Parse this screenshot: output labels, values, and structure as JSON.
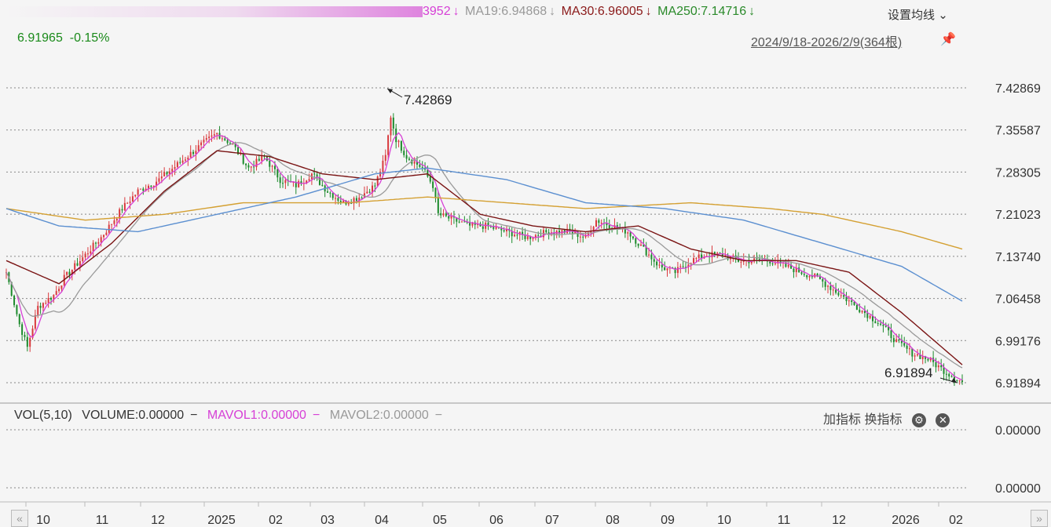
{
  "header": {
    "ma5_partial": "3952",
    "ma19": "MA19:6.94868",
    "ma30": "MA30:6.96005",
    "ma250": "MA250:7.14716",
    "arrow": "↓",
    "settings": "设置均线",
    "range": "2024/9/18-2026/2/9(364根)",
    "last_price": "6.91965",
    "change": "-0.15%"
  },
  "volume_panel": {
    "vol": "VOL(5,10)",
    "volume": "VOLUME:0.00000",
    "mavol1": "MAVOL1:0.00000",
    "mavol2": "MAVOL2:0.00000",
    "add_indicator": "加指标",
    "switch_indicator": "换指标",
    "y_ticks": [
      "0.00000",
      "0.00000"
    ]
  },
  "colors": {
    "up": "#d9383c",
    "down": "#1c8a2c",
    "ma5": "#d63fd6",
    "ma19": "#9a9a9a",
    "ma30": "#7a1414",
    "ma250": "#d4a032",
    "ma_blue": "#5b8fd0"
  },
  "chart_data": {
    "type": "candlestick",
    "ylim": [
      6.89,
      7.445
    ],
    "y_ticks": [
      "7.42869",
      "7.35587",
      "7.28305",
      "7.21023",
      "7.13740",
      "7.06458",
      "6.99176",
      "6.91894"
    ],
    "x_ticks": [
      "10",
      "11",
      "12",
      "2025",
      "02",
      "03",
      "04",
      "05",
      "06",
      "07",
      "08",
      "09",
      "10",
      "11",
      "12",
      "2026",
      "02"
    ],
    "annotations": [
      {
        "label": "7.42869",
        "x": "04",
        "y": 7.42869
      },
      {
        "label": "6.91894",
        "x": "02",
        "y": 6.91894
      }
    ],
    "close_path": [
      [
        0,
        7.11
      ],
      [
        5,
        7.02
      ],
      [
        8,
        6.98
      ],
      [
        12,
        7.05
      ],
      [
        18,
        7.07
      ],
      [
        22,
        7.1
      ],
      [
        28,
        7.13
      ],
      [
        36,
        7.17
      ],
      [
        44,
        7.22
      ],
      [
        50,
        7.25
      ],
      [
        58,
        7.27
      ],
      [
        66,
        7.3
      ],
      [
        74,
        7.33
      ],
      [
        80,
        7.35
      ],
      [
        86,
        7.33
      ],
      [
        92,
        7.29
      ],
      [
        98,
        7.31
      ],
      [
        104,
        7.27
      ],
      [
        110,
        7.26
      ],
      [
        116,
        7.28
      ],
      [
        122,
        7.25
      ],
      [
        128,
        7.23
      ],
      [
        134,
        7.24
      ],
      [
        140,
        7.26
      ],
      [
        144,
        7.31
      ],
      [
        146,
        7.38
      ],
      [
        148,
        7.34
      ],
      [
        152,
        7.31
      ],
      [
        158,
        7.29
      ],
      [
        162,
        7.26
      ],
      [
        164,
        7.21
      ],
      [
        170,
        7.2
      ],
      [
        176,
        7.19
      ],
      [
        182,
        7.19
      ],
      [
        190,
        7.18
      ],
      [
        198,
        7.17
      ],
      [
        206,
        7.18
      ],
      [
        214,
        7.18
      ],
      [
        220,
        7.17
      ],
      [
        224,
        7.2
      ],
      [
        230,
        7.19
      ],
      [
        236,
        7.18
      ],
      [
        242,
        7.15
      ],
      [
        248,
        7.12
      ],
      [
        254,
        7.11
      ],
      [
        260,
        7.13
      ],
      [
        266,
        7.14
      ],
      [
        272,
        7.14
      ],
      [
        278,
        7.13
      ],
      [
        284,
        7.13
      ],
      [
        290,
        7.13
      ],
      [
        296,
        7.12
      ],
      [
        302,
        7.11
      ],
      [
        308,
        7.1
      ],
      [
        314,
        7.08
      ],
      [
        320,
        7.06
      ],
      [
        326,
        7.04
      ],
      [
        332,
        7.02
      ],
      [
        338,
        6.99
      ],
      [
        344,
        6.97
      ],
      [
        350,
        6.96
      ],
      [
        356,
        6.94
      ],
      [
        363,
        6.92
      ]
    ],
    "series": [
      {
        "name": "MA30",
        "points": [
          [
            0,
            7.13
          ],
          [
            20,
            7.09
          ],
          [
            40,
            7.16
          ],
          [
            60,
            7.25
          ],
          [
            80,
            7.32
          ],
          [
            100,
            7.31
          ],
          [
            120,
            7.28
          ],
          [
            140,
            7.27
          ],
          [
            160,
            7.28
          ],
          [
            180,
            7.21
          ],
          [
            200,
            7.19
          ],
          [
            220,
            7.18
          ],
          [
            240,
            7.19
          ],
          [
            260,
            7.15
          ],
          [
            280,
            7.13
          ],
          [
            300,
            7.13
          ],
          [
            320,
            7.11
          ],
          [
            340,
            7.04
          ],
          [
            363,
            6.95
          ]
        ]
      },
      {
        "name": "MA250",
        "points": [
          [
            0,
            7.22
          ],
          [
            30,
            7.2
          ],
          [
            60,
            7.21
          ],
          [
            90,
            7.23
          ],
          [
            130,
            7.23
          ],
          [
            160,
            7.24
          ],
          [
            190,
            7.23
          ],
          [
            220,
            7.22
          ],
          [
            260,
            7.23
          ],
          [
            290,
            7.22
          ],
          [
            310,
            7.21
          ],
          [
            340,
            7.18
          ],
          [
            363,
            7.15
          ]
        ]
      },
      {
        "name": "",
        "points": [
          [
            0,
            7.22
          ],
          [
            20,
            7.19
          ],
          [
            50,
            7.18
          ],
          [
            80,
            7.21
          ],
          [
            110,
            7.24
          ],
          [
            140,
            7.28
          ],
          [
            160,
            7.29
          ],
          [
            190,
            7.27
          ],
          [
            220,
            7.23
          ],
          [
            250,
            7.22
          ],
          [
            280,
            7.2
          ],
          [
            310,
            7.16
          ],
          [
            340,
            7.12
          ],
          [
            363,
            7.06
          ]
        ]
      }
    ]
  }
}
